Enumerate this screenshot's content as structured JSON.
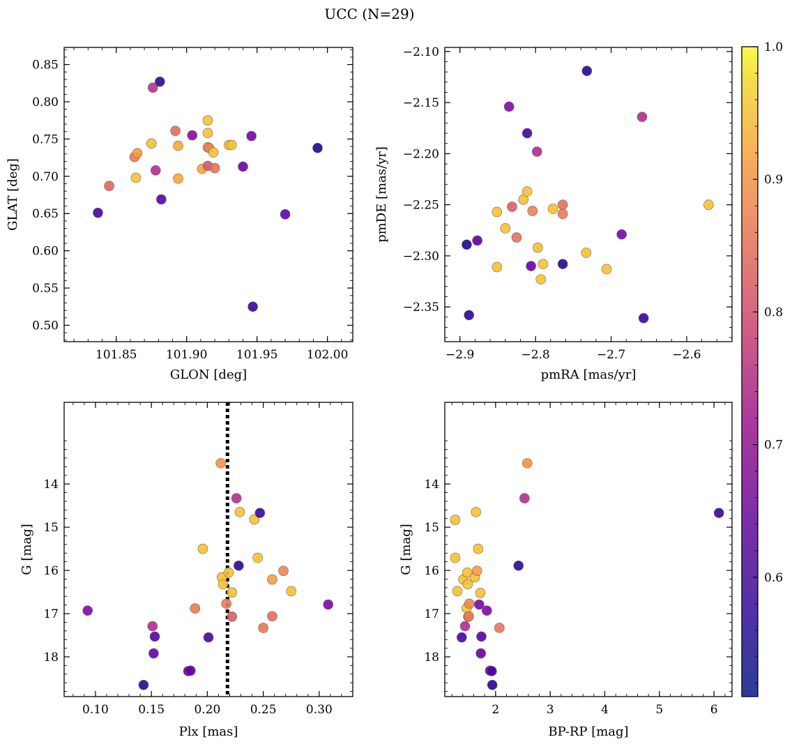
{
  "title": "UCC (N=29)",
  "colormap": {
    "type": "plasma",
    "vmin": 0.51,
    "vmax": 1.0,
    "ticks": [
      0.6,
      0.7,
      0.8,
      0.9,
      1.0
    ],
    "tick_labels": [
      "0.6",
      "0.7",
      "0.8",
      "0.9",
      "1.0"
    ]
  },
  "chart_data": [
    {
      "type": "scatter",
      "xlabel": "GLON [deg]",
      "ylabel": "GLAT [deg]",
      "xlim": [
        101.813,
        102.018
      ],
      "ylim": [
        0.478,
        0.873
      ],
      "yinvert": false,
      "xticks": [
        101.85,
        101.9,
        101.95,
        102.0
      ],
      "xtick_labels": [
        "101.85",
        "101.90",
        "101.95",
        "102.00"
      ],
      "yticks": [
        0.5,
        0.55,
        0.6,
        0.65,
        0.7,
        0.75,
        0.8,
        0.85
      ],
      "ytick_labels": [
        "0.50",
        "0.55",
        "0.60",
        "0.65",
        "0.70",
        "0.75",
        "0.80",
        "0.85"
      ],
      "points": [
        {
          "x": 101.837,
          "y": 0.651,
          "c": 0.58
        },
        {
          "x": 101.845,
          "y": 0.687,
          "c": 0.88
        },
        {
          "x": 101.863,
          "y": 0.726,
          "c": 0.92
        },
        {
          "x": 101.864,
          "y": 0.698,
          "c": 0.98
        },
        {
          "x": 101.865,
          "y": 0.731,
          "c": 0.96
        },
        {
          "x": 101.875,
          "y": 0.744,
          "c": 0.98
        },
        {
          "x": 101.876,
          "y": 0.819,
          "c": 0.77
        },
        {
          "x": 101.878,
          "y": 0.708,
          "c": 0.76
        },
        {
          "x": 101.881,
          "y": 0.827,
          "c": 0.55
        },
        {
          "x": 101.882,
          "y": 0.669,
          "c": 0.6
        },
        {
          "x": 101.892,
          "y": 0.761,
          "c": 0.89
        },
        {
          "x": 101.894,
          "y": 0.697,
          "c": 0.97
        },
        {
          "x": 101.894,
          "y": 0.741,
          "c": 0.97
        },
        {
          "x": 101.904,
          "y": 0.755,
          "c": 0.68
        },
        {
          "x": 101.911,
          "y": 0.71,
          "c": 0.97
        },
        {
          "x": 101.915,
          "y": 0.775,
          "c": 0.98
        },
        {
          "x": 101.915,
          "y": 0.758,
          "c": 0.98
        },
        {
          "x": 101.915,
          "y": 0.739,
          "c": 0.96
        },
        {
          "x": 101.916,
          "y": 0.738,
          "c": 0.93
        },
        {
          "x": 101.915,
          "y": 0.714,
          "c": 0.85
        },
        {
          "x": 101.919,
          "y": 0.732,
          "c": 0.98
        },
        {
          "x": 101.92,
          "y": 0.711,
          "c": 0.9
        },
        {
          "x": 101.93,
          "y": 0.742,
          "c": 0.98
        },
        {
          "x": 101.932,
          "y": 0.742,
          "c": 0.98
        },
        {
          "x": 101.94,
          "y": 0.713,
          "c": 0.64
        },
        {
          "x": 101.946,
          "y": 0.754,
          "c": 0.65
        },
        {
          "x": 101.947,
          "y": 0.525,
          "c": 0.56
        },
        {
          "x": 101.97,
          "y": 0.649,
          "c": 0.62
        },
        {
          "x": 101.993,
          "y": 0.738,
          "c": 0.53
        }
      ]
    },
    {
      "type": "scatter",
      "xlabel": "pmRA [mas/yr]",
      "ylabel": "pmDE [mas/yr]",
      "xlim": [
        -2.92,
        -2.54
      ],
      "ylim": [
        -2.384,
        -2.096
      ],
      "yinvert": false,
      "xticks": [
        -2.9,
        -2.8,
        -2.7,
        -2.6
      ],
      "xtick_labels": [
        "−2.9",
        "−2.8",
        "−2.7",
        "−2.6"
      ],
      "yticks": [
        -2.35,
        -2.3,
        -2.25,
        -2.2,
        -2.15,
        -2.1
      ],
      "ytick_labels": [
        "−2.35",
        "−2.30",
        "−2.25",
        "−2.20",
        "−2.15",
        "−2.10"
      ],
      "points": [
        {
          "x": -2.891,
          "y": -2.289,
          "c": 0.53
        },
        {
          "x": -2.888,
          "y": -2.358,
          "c": 0.55
        },
        {
          "x": -2.877,
          "y": -2.285,
          "c": 0.61
        },
        {
          "x": -2.851,
          "y": -2.257,
          "c": 0.98
        },
        {
          "x": -2.851,
          "y": -2.311,
          "c": 0.98
        },
        {
          "x": -2.84,
          "y": -2.273,
          "c": 0.98
        },
        {
          "x": -2.835,
          "y": -2.154,
          "c": 0.67
        },
        {
          "x": -2.831,
          "y": -2.252,
          "c": 0.87
        },
        {
          "x": -2.825,
          "y": -2.282,
          "c": 0.9
        },
        {
          "x": -2.816,
          "y": -2.245,
          "c": 0.98
        },
        {
          "x": -2.811,
          "y": -2.237,
          "c": 0.98
        },
        {
          "x": -2.811,
          "y": -2.18,
          "c": 0.58
        },
        {
          "x": -2.806,
          "y": -2.31,
          "c": 0.63
        },
        {
          "x": -2.804,
          "y": -2.256,
          "c": 0.93
        },
        {
          "x": -2.798,
          "y": -2.198,
          "c": 0.76
        },
        {
          "x": -2.797,
          "y": -2.292,
          "c": 0.98
        },
        {
          "x": -2.793,
          "y": -2.323,
          "c": 0.98
        },
        {
          "x": -2.79,
          "y": -2.308,
          "c": 0.98
        },
        {
          "x": -2.777,
          "y": -2.254,
          "c": 0.98
        },
        {
          "x": -2.764,
          "y": -2.25,
          "c": 0.9
        },
        {
          "x": -2.764,
          "y": -2.259,
          "c": 0.92
        },
        {
          "x": -2.764,
          "y": -2.308,
          "c": 0.54
        },
        {
          "x": -2.733,
          "y": -2.297,
          "c": 0.98
        },
        {
          "x": -2.732,
          "y": -2.119,
          "c": 0.54
        },
        {
          "x": -2.706,
          "y": -2.313,
          "c": 0.98
        },
        {
          "x": -2.686,
          "y": -2.279,
          "c": 0.66
        },
        {
          "x": -2.659,
          "y": -2.164,
          "c": 0.76
        },
        {
          "x": -2.657,
          "y": -2.361,
          "c": 0.56
        },
        {
          "x": -2.571,
          "y": -2.25,
          "c": 0.98
        }
      ]
    },
    {
      "type": "scatter",
      "xlabel": "Plx [mas]",
      "ylabel": "G [mag]",
      "xlim": [
        0.072,
        0.33
      ],
      "ylim": [
        18.92,
        12.11
      ],
      "yinvert": true,
      "xticks": [
        0.1,
        0.15,
        0.2,
        0.25,
        0.3
      ],
      "xtick_labels": [
        "0.10",
        "0.15",
        "0.20",
        "0.25",
        "0.30"
      ],
      "yticks": [
        14,
        15,
        16,
        17,
        18
      ],
      "ytick_labels": [
        "14",
        "15",
        "16",
        "17",
        "18"
      ],
      "vline": {
        "x": 0.218,
        "style": "dotted"
      },
      "points": [
        {
          "x": 0.093,
          "y": 16.93,
          "c": 0.67
        },
        {
          "x": 0.143,
          "y": 18.65,
          "c": 0.54
        },
        {
          "x": 0.151,
          "y": 17.29,
          "c": 0.76
        },
        {
          "x": 0.153,
          "y": 17.53,
          "c": 0.61
        },
        {
          "x": 0.152,
          "y": 17.92,
          "c": 0.63
        },
        {
          "x": 0.183,
          "y": 18.33,
          "c": 0.59
        },
        {
          "x": 0.185,
          "y": 18.32,
          "c": 0.63
        },
        {
          "x": 0.189,
          "y": 16.88,
          "c": 0.92
        },
        {
          "x": 0.196,
          "y": 15.5,
          "c": 0.98
        },
        {
          "x": 0.201,
          "y": 17.55,
          "c": 0.58
        },
        {
          "x": 0.212,
          "y": 13.52,
          "c": 0.95
        },
        {
          "x": 0.213,
          "y": 16.16,
          "c": 0.98
        },
        {
          "x": 0.214,
          "y": 16.32,
          "c": 0.98
        },
        {
          "x": 0.217,
          "y": 16.77,
          "c": 0.92
        },
        {
          "x": 0.219,
          "y": 16.05,
          "c": 0.98
        },
        {
          "x": 0.222,
          "y": 17.07,
          "c": 0.86
        },
        {
          "x": 0.222,
          "y": 16.51,
          "c": 0.98
        },
        {
          "x": 0.226,
          "y": 14.33,
          "c": 0.76
        },
        {
          "x": 0.228,
          "y": 15.89,
          "c": 0.55
        },
        {
          "x": 0.229,
          "y": 14.65,
          "c": 0.98
        },
        {
          "x": 0.242,
          "y": 14.82,
          "c": 0.98
        },
        {
          "x": 0.245,
          "y": 15.71,
          "c": 0.98
        },
        {
          "x": 0.247,
          "y": 14.67,
          "c": 0.56
        },
        {
          "x": 0.25,
          "y": 17.33,
          "c": 0.91
        },
        {
          "x": 0.258,
          "y": 16.21,
          "c": 0.96
        },
        {
          "x": 0.258,
          "y": 17.06,
          "c": 0.89
        },
        {
          "x": 0.268,
          "y": 16.01,
          "c": 0.94
        },
        {
          "x": 0.275,
          "y": 16.48,
          "c": 0.98
        },
        {
          "x": 0.308,
          "y": 16.79,
          "c": 0.66
        }
      ]
    },
    {
      "type": "scatter",
      "xlabel": "BP-RP [mag]",
      "ylabel": "G [mag]",
      "xlim": [
        1.07,
        6.33
      ],
      "ylim": [
        18.92,
        12.11
      ],
      "yinvert": true,
      "xticks": [
        2,
        3,
        4,
        5,
        6
      ],
      "xtick_labels": [
        "2",
        "3",
        "4",
        "5",
        "6"
      ],
      "yticks": [
        14,
        15,
        16,
        17,
        18
      ],
      "ytick_labels": [
        "14",
        "15",
        "16",
        "17",
        "18"
      ],
      "points": [
        {
          "x": 1.26,
          "y": 14.83,
          "c": 0.98
        },
        {
          "x": 1.26,
          "y": 15.71,
          "c": 0.98
        },
        {
          "x": 1.3,
          "y": 16.48,
          "c": 0.98
        },
        {
          "x": 1.38,
          "y": 17.55,
          "c": 0.58
        },
        {
          "x": 1.41,
          "y": 16.21,
          "c": 0.98
        },
        {
          "x": 1.44,
          "y": 17.29,
          "c": 0.76
        },
        {
          "x": 1.47,
          "y": 16.87,
          "c": 0.98
        },
        {
          "x": 1.48,
          "y": 16.05,
          "c": 0.98
        },
        {
          "x": 1.49,
          "y": 16.32,
          "c": 0.98
        },
        {
          "x": 1.5,
          "y": 17.07,
          "c": 0.88
        },
        {
          "x": 1.51,
          "y": 17.06,
          "c": 0.92
        },
        {
          "x": 1.52,
          "y": 16.77,
          "c": 0.94
        },
        {
          "x": 1.62,
          "y": 16.16,
          "c": 0.98
        },
        {
          "x": 1.64,
          "y": 14.65,
          "c": 0.98
        },
        {
          "x": 1.66,
          "y": 16.01,
          "c": 0.96
        },
        {
          "x": 1.68,
          "y": 15.5,
          "c": 0.98
        },
        {
          "x": 1.7,
          "y": 16.79,
          "c": 0.66
        },
        {
          "x": 1.72,
          "y": 16.52,
          "c": 0.98
        },
        {
          "x": 1.73,
          "y": 17.92,
          "c": 0.63
        },
        {
          "x": 1.74,
          "y": 17.53,
          "c": 0.61
        },
        {
          "x": 1.84,
          "y": 16.93,
          "c": 0.67
        },
        {
          "x": 1.9,
          "y": 18.32,
          "c": 0.63
        },
        {
          "x": 1.93,
          "y": 18.33,
          "c": 0.59
        },
        {
          "x": 1.94,
          "y": 18.65,
          "c": 0.54
        },
        {
          "x": 2.07,
          "y": 17.33,
          "c": 0.91
        },
        {
          "x": 2.42,
          "y": 15.89,
          "c": 0.55
        },
        {
          "x": 2.53,
          "y": 14.33,
          "c": 0.76
        },
        {
          "x": 2.58,
          "y": 13.52,
          "c": 0.95
        },
        {
          "x": 6.09,
          "y": 14.67,
          "c": 0.56
        }
      ]
    }
  ]
}
